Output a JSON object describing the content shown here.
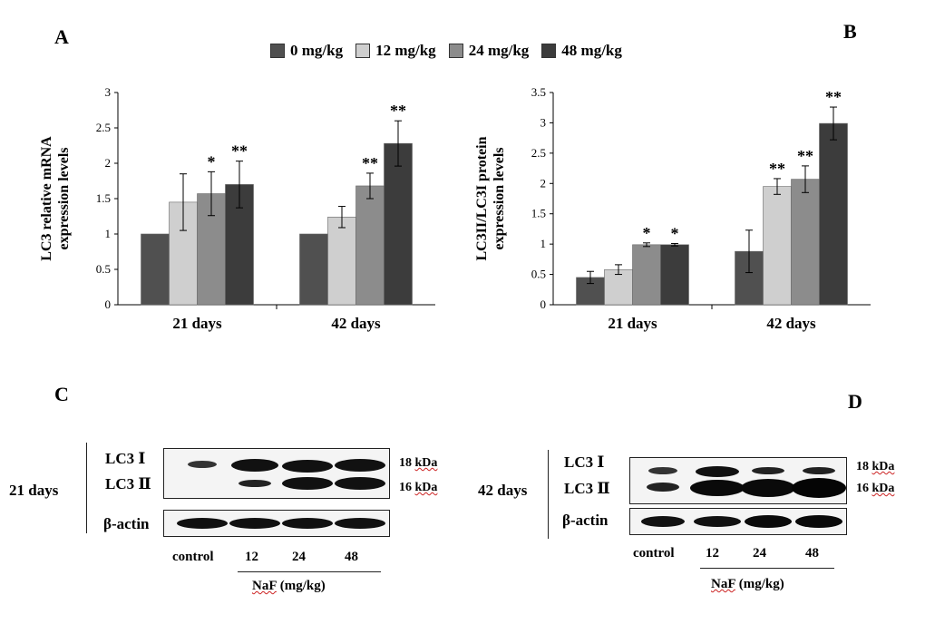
{
  "panels": {
    "a": "A",
    "b": "B",
    "c": "C",
    "d": "D"
  },
  "colors": {
    "series": [
      "#505050",
      "#cfcfcf",
      "#8c8c8c",
      "#3c3c3c"
    ]
  },
  "chart_data": [
    {
      "id": "A",
      "type": "bar",
      "ylabel": "LC3 relative mRNA expression levels",
      "ylabel_lines": [
        "LC3 relative mRNA",
        "expression levels"
      ],
      "ylim": [
        0,
        3
      ],
      "yticks": [
        "0",
        "0.5",
        "1",
        "1.5",
        "2",
        "2.5",
        "3"
      ],
      "ytick_values": [
        0,
        0.5,
        1,
        1.5,
        2,
        2.5,
        3
      ],
      "categories": [
        "21 days",
        "42 days"
      ],
      "series": [
        {
          "name": "0 mg/kg",
          "values": [
            1.0,
            1.0
          ],
          "errors": [
            0,
            0
          ],
          "sig": [
            "",
            ""
          ]
        },
        {
          "name": "12 mg/kg",
          "values": [
            1.45,
            1.24
          ],
          "errors": [
            0.4,
            0.15
          ],
          "sig": [
            "",
            ""
          ]
        },
        {
          "name": "24 mg/kg",
          "values": [
            1.57,
            1.68
          ],
          "errors": [
            0.31,
            0.18
          ],
          "sig": [
            "*",
            "**"
          ]
        },
        {
          "name": "48 mg/kg",
          "values": [
            1.7,
            2.28
          ],
          "errors": [
            0.33,
            0.32
          ],
          "sig": [
            "**",
            "**"
          ]
        }
      ]
    },
    {
      "id": "B",
      "type": "bar",
      "ylabel": "LC3II/LC3I protein expression levels",
      "ylabel_lines": [
        "LC3II/LC3I protein",
        "expression levels"
      ],
      "ylim": [
        0,
        3.5
      ],
      "yticks": [
        "0",
        "0.5",
        "1",
        "1.5",
        "2",
        "2.5",
        "3",
        "3.5"
      ],
      "ytick_values": [
        0,
        0.5,
        1,
        1.5,
        2,
        2.5,
        3,
        3.5
      ],
      "categories": [
        "21 days",
        "42 days"
      ],
      "series": [
        {
          "name": "0 mg/kg",
          "values": [
            0.45,
            0.88
          ],
          "errors": [
            0.1,
            0.35
          ],
          "sig": [
            "",
            ""
          ]
        },
        {
          "name": "12 mg/kg",
          "values": [
            0.58,
            1.95
          ],
          "errors": [
            0.08,
            0.13
          ],
          "sig": [
            "",
            "**"
          ]
        },
        {
          "name": "24 mg/kg",
          "values": [
            0.99,
            2.07
          ],
          "errors": [
            0.03,
            0.22
          ],
          "sig": [
            "*",
            "**"
          ]
        },
        {
          "name": "48 mg/kg",
          "values": [
            0.99,
            2.99
          ],
          "errors": [
            0.02,
            0.27
          ],
          "sig": [
            "*",
            "**"
          ]
        }
      ]
    }
  ],
  "blots": {
    "c": {
      "days_label": "21 days",
      "band_labels": [
        "LC3 Ⅰ",
        "LC3 Ⅱ",
        "β-actin"
      ],
      "mw": [
        {
          "value": "18",
          "unit": "kDa"
        },
        {
          "value": "16",
          "unit": "kDa"
        }
      ],
      "lanes": [
        "control",
        "12",
        "24",
        "48"
      ],
      "treatment": "NaF",
      "treatment_unit": "(mg/kg)"
    },
    "d": {
      "days_label": "42 days",
      "band_labels": [
        "LC3 Ⅰ",
        "LC3 Ⅱ",
        "β-actin"
      ],
      "mw": [
        {
          "value": "18",
          "unit": "kDa"
        },
        {
          "value": "16",
          "unit": "kDa"
        }
      ],
      "lanes": [
        "control",
        "12",
        "24",
        "48"
      ],
      "treatment": "NaF",
      "treatment_unit": "(mg/kg)"
    }
  }
}
